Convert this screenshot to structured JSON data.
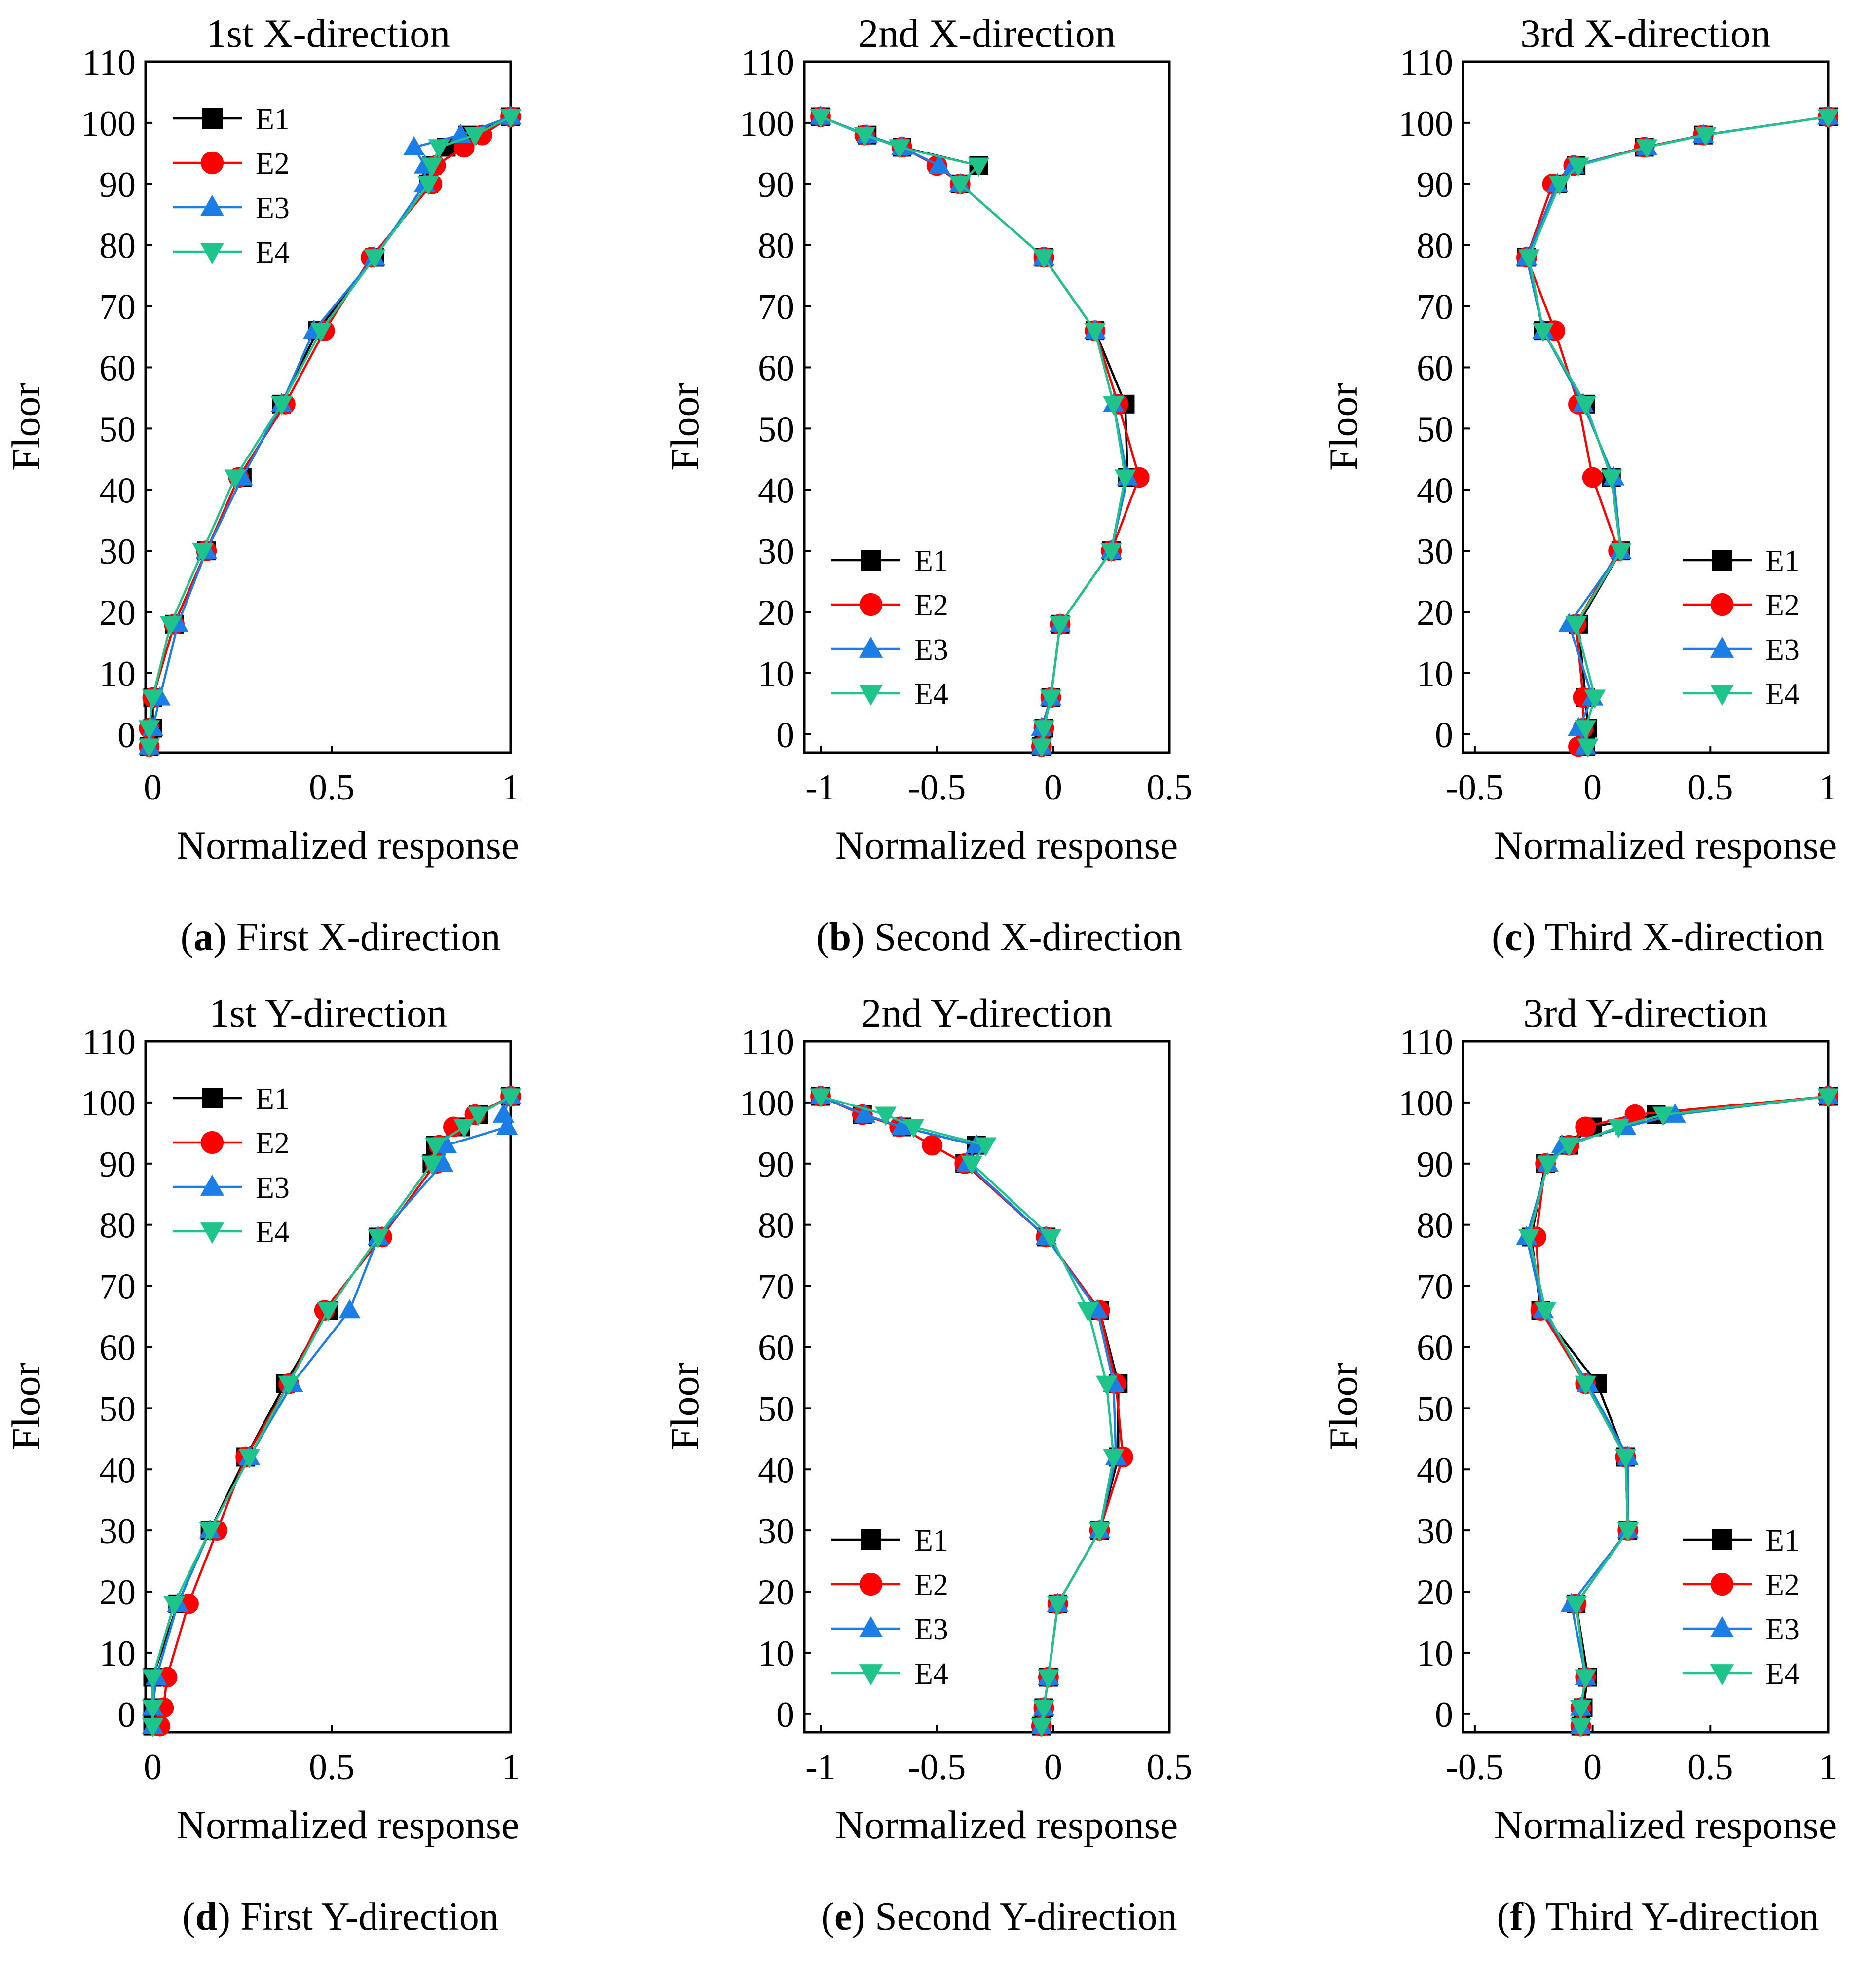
{
  "chart_data": [
    {
      "type": "line",
      "panel": "a",
      "title": "1st X-direction",
      "caption_letter": "a",
      "caption": "First X-direction",
      "xlabel": "Normalized response",
      "ylabel": "Floor",
      "xlim": [
        -0.02,
        1.0
      ],
      "ylim": [
        -3,
        110
      ],
      "xticks": [
        "0",
        "0.5",
        "1"
      ],
      "xtick_values": [
        0,
        0.5,
        1
      ],
      "yticks": [
        "0",
        "10",
        "20",
        "30",
        "40",
        "50",
        "60",
        "70",
        "80",
        "90",
        "100",
        "110"
      ],
      "legend": "top-left",
      "floors": [
        -2,
        1,
        6,
        18,
        30,
        42,
        54,
        66,
        78,
        90,
        93,
        96,
        98,
        101
      ],
      "series": [
        {
          "name": "E1",
          "values": [
            -0.01,
            0.0,
            0.0,
            0.06,
            0.15,
            0.25,
            0.36,
            0.46,
            0.62,
            0.77,
            0.78,
            0.82,
            0.88,
            1.0
          ]
        },
        {
          "name": "E2",
          "values": [
            -0.01,
            -0.01,
            0.0,
            0.06,
            0.15,
            0.24,
            0.37,
            0.48,
            0.61,
            0.78,
            0.79,
            0.87,
            0.92,
            1.0
          ]
        },
        {
          "name": "E3",
          "values": [
            -0.01,
            0.0,
            0.02,
            0.07,
            0.15,
            0.25,
            0.36,
            0.45,
            0.62,
            0.76,
            0.76,
            0.73,
            0.86,
            1.0
          ]
        },
        {
          "name": "E4",
          "values": [
            -0.01,
            -0.01,
            0.0,
            0.05,
            0.14,
            0.23,
            0.36,
            0.47,
            0.62,
            0.77,
            0.78,
            0.8,
            0.9,
            1.0
          ]
        }
      ]
    },
    {
      "type": "line",
      "panel": "b",
      "title": "2nd X-direction",
      "caption_letter": "b",
      "caption": "Second X-direction",
      "xlabel": "Normalized response",
      "ylabel": "Floor",
      "xlim": [
        -1.07,
        0.5
      ],
      "ylim": [
        -3,
        110
      ],
      "xticks": [
        "-1",
        "-0.5",
        "0",
        "0.5"
      ],
      "xtick_values": [
        -1,
        -0.5,
        0,
        0.5
      ],
      "yticks": [
        "0",
        "10",
        "20",
        "30",
        "40",
        "50",
        "60",
        "70",
        "80",
        "90",
        "100",
        "110"
      ],
      "legend": "bottom-left",
      "floors": [
        -2,
        1,
        6,
        18,
        30,
        42,
        54,
        66,
        78,
        90,
        93,
        96,
        98,
        101
      ],
      "series": [
        {
          "name": "E1",
          "values": [
            -0.05,
            -0.04,
            -0.01,
            0.03,
            0.25,
            0.32,
            0.31,
            0.18,
            -0.04,
            -0.4,
            -0.32,
            -0.65,
            -0.8,
            -1.0
          ]
        },
        {
          "name": "E2",
          "values": [
            -0.05,
            -0.04,
            -0.01,
            0.03,
            0.25,
            0.37,
            0.28,
            0.18,
            -0.04,
            -0.4,
            -0.5,
            -0.65,
            -0.81,
            -1.0
          ]
        },
        {
          "name": "E3",
          "values": [
            -0.05,
            -0.05,
            -0.01,
            0.03,
            0.25,
            0.32,
            0.26,
            0.18,
            -0.04,
            -0.4,
            -0.49,
            -0.65,
            -0.8,
            -1.0
          ]
        },
        {
          "name": "E4",
          "values": [
            -0.05,
            -0.04,
            -0.01,
            0.03,
            0.25,
            0.31,
            0.26,
            0.18,
            -0.04,
            -0.4,
            -0.32,
            -0.66,
            -0.81,
            -1.0
          ]
        }
      ]
    },
    {
      "type": "line",
      "panel": "c",
      "title": "3rd X-direction",
      "caption_letter": "c",
      "caption": "Third X-direction",
      "xlabel": "Normalized response",
      "ylabel": "Floor",
      "xlim": [
        -0.55,
        1.0
      ],
      "ylim": [
        -3,
        110
      ],
      "xticks": [
        "-0.5",
        "0",
        "0.5",
        "1"
      ],
      "xtick_values": [
        -0.5,
        0,
        0.5,
        1
      ],
      "yticks": [
        "0",
        "10",
        "20",
        "30",
        "40",
        "50",
        "60",
        "70",
        "80",
        "90",
        "100",
        "110"
      ],
      "legend": "bottom-right",
      "floors": [
        -2,
        1,
        6,
        18,
        30,
        42,
        54,
        66,
        78,
        90,
        93,
        96,
        98,
        101
      ],
      "series": [
        {
          "name": "E1",
          "values": [
            -0.03,
            -0.02,
            -0.03,
            -0.06,
            0.12,
            0.08,
            -0.03,
            -0.21,
            -0.28,
            -0.15,
            -0.07,
            0.22,
            0.47,
            1.0
          ]
        },
        {
          "name": "E2",
          "values": [
            -0.06,
            -0.04,
            -0.04,
            -0.07,
            0.11,
            0.0,
            -0.06,
            -0.16,
            -0.28,
            -0.17,
            -0.08,
            0.22,
            0.47,
            1.0
          ]
        },
        {
          "name": "E3",
          "values": [
            -0.03,
            -0.06,
            0.0,
            -0.1,
            0.12,
            0.09,
            -0.04,
            -0.21,
            -0.28,
            -0.15,
            -0.08,
            0.23,
            0.47,
            1.0
          ]
        },
        {
          "name": "E4",
          "values": [
            -0.02,
            -0.03,
            0.01,
            -0.07,
            0.12,
            0.08,
            -0.03,
            -0.21,
            -0.27,
            -0.14,
            -0.06,
            0.23,
            0.48,
            1.0
          ]
        }
      ]
    },
    {
      "type": "line",
      "panel": "d",
      "title": "1st Y-direction",
      "caption_letter": "d",
      "caption": "First Y-direction",
      "xlabel": "Normalized response",
      "ylabel": "Floor",
      "xlim": [
        -0.02,
        1.0
      ],
      "ylim": [
        -3,
        110
      ],
      "xticks": [
        "0",
        "0.5",
        "1"
      ],
      "xtick_values": [
        0,
        0.5,
        1
      ],
      "yticks": [
        "0",
        "10",
        "20",
        "30",
        "40",
        "50",
        "60",
        "70",
        "80",
        "90",
        "100",
        "110"
      ],
      "legend": "top-left",
      "floors": [
        -2,
        1,
        6,
        18,
        30,
        42,
        54,
        66,
        78,
        90,
        93,
        96,
        98,
        101
      ],
      "series": [
        {
          "name": "E1",
          "values": [
            0.0,
            0.0,
            0.0,
            0.07,
            0.16,
            0.26,
            0.37,
            0.49,
            0.63,
            0.78,
            0.79,
            0.86,
            0.91,
            1.0
          ]
        },
        {
          "name": "E2",
          "values": [
            0.02,
            0.03,
            0.04,
            0.1,
            0.18,
            0.26,
            0.38,
            0.48,
            0.64,
            0.79,
            0.8,
            0.84,
            0.9,
            1.0
          ]
        },
        {
          "name": "E3",
          "values": [
            0.0,
            0.0,
            0.01,
            0.07,
            0.16,
            0.27,
            0.39,
            0.55,
            0.63,
            0.81,
            0.82,
            0.99,
            0.98,
            1.0
          ]
        },
        {
          "name": "E4",
          "values": [
            0.0,
            0.0,
            0.0,
            0.06,
            0.16,
            0.27,
            0.38,
            0.49,
            0.63,
            0.78,
            0.79,
            0.87,
            0.91,
            1.0
          ]
        }
      ]
    },
    {
      "type": "line",
      "panel": "e",
      "title": "2nd Y-direction",
      "caption_letter": "e",
      "caption": "Second Y-direction",
      "xlabel": "Normalized response",
      "ylabel": "Floor",
      "xlim": [
        -1.07,
        0.5
      ],
      "ylim": [
        -3,
        110
      ],
      "xticks": [
        "-1",
        "-0.5",
        "0",
        "0.5"
      ],
      "xtick_values": [
        -1,
        -0.5,
        0,
        0.5
      ],
      "yticks": [
        "0",
        "10",
        "20",
        "30",
        "40",
        "50",
        "60",
        "70",
        "80",
        "90",
        "100",
        "110"
      ],
      "legend": "bottom-left",
      "floors": [
        -2,
        1,
        6,
        18,
        30,
        42,
        54,
        66,
        78,
        90,
        93,
        96,
        98,
        101
      ],
      "series": [
        {
          "name": "E1",
          "values": [
            -0.05,
            -0.04,
            -0.02,
            0.02,
            0.2,
            0.28,
            0.28,
            0.2,
            -0.03,
            -0.38,
            -0.33,
            -0.65,
            -0.82,
            -1.0
          ]
        },
        {
          "name": "E2",
          "values": [
            -0.05,
            -0.04,
            -0.02,
            0.02,
            0.2,
            0.3,
            0.27,
            0.2,
            -0.03,
            -0.38,
            -0.52,
            -0.66,
            -0.82,
            -1.0
          ]
        },
        {
          "name": "E3",
          "values": [
            -0.05,
            -0.04,
            -0.02,
            0.02,
            0.2,
            0.27,
            0.26,
            0.19,
            -0.03,
            -0.37,
            -0.33,
            -0.65,
            -0.81,
            -1.0
          ]
        },
        {
          "name": "E4",
          "values": [
            -0.05,
            -0.04,
            -0.02,
            0.02,
            0.2,
            0.26,
            0.23,
            0.15,
            -0.01,
            -0.35,
            -0.29,
            -0.6,
            -0.72,
            -1.0
          ]
        }
      ]
    },
    {
      "type": "line",
      "panel": "f",
      "title": "3rd Y-direction",
      "caption_letter": "f",
      "caption": "Third Y-direction",
      "xlabel": "Normalized response",
      "ylabel": "Floor",
      "xlim": [
        -0.55,
        1.0
      ],
      "ylim": [
        -3,
        110
      ],
      "xticks": [
        "-0.5",
        "0",
        "0.5",
        "1"
      ],
      "xtick_values": [
        -0.5,
        0,
        0.5,
        1
      ],
      "yticks": [
        "0",
        "10",
        "20",
        "30",
        "40",
        "50",
        "60",
        "70",
        "80",
        "90",
        "100",
        "110"
      ],
      "legend": "bottom-right",
      "floors": [
        -2,
        1,
        6,
        18,
        30,
        42,
        54,
        66,
        78,
        90,
        93,
        96,
        98,
        101
      ],
      "series": [
        {
          "name": "E1",
          "values": [
            -0.05,
            -0.04,
            -0.02,
            -0.07,
            0.15,
            0.14,
            0.02,
            -0.22,
            -0.26,
            -0.2,
            -0.1,
            0.0,
            0.27,
            1.0
          ]
        },
        {
          "name": "E2",
          "values": [
            -0.05,
            -0.05,
            -0.03,
            -0.07,
            0.15,
            0.14,
            -0.03,
            -0.22,
            -0.24,
            -0.2,
            -0.1,
            -0.03,
            0.18,
            1.0
          ]
        },
        {
          "name": "E3",
          "values": [
            -0.05,
            -0.05,
            -0.03,
            -0.09,
            0.15,
            0.15,
            -0.02,
            -0.21,
            -0.28,
            -0.19,
            -0.13,
            0.14,
            0.35,
            1.0
          ]
        },
        {
          "name": "E4",
          "values": [
            -0.05,
            -0.05,
            -0.03,
            -0.07,
            0.15,
            0.14,
            -0.03,
            -0.2,
            -0.27,
            -0.19,
            -0.1,
            0.11,
            0.3,
            1.0
          ]
        }
      ]
    }
  ],
  "series_styles": [
    {
      "name": "E1",
      "color": "#000000",
      "marker": "square"
    },
    {
      "name": "E2",
      "color": "#ff0000",
      "marker": "circle"
    },
    {
      "name": "E3",
      "color": "#1a7ee6",
      "marker": "triangle-up"
    },
    {
      "name": "E4",
      "color": "#1fc48a",
      "marker": "triangle-down"
    }
  ]
}
